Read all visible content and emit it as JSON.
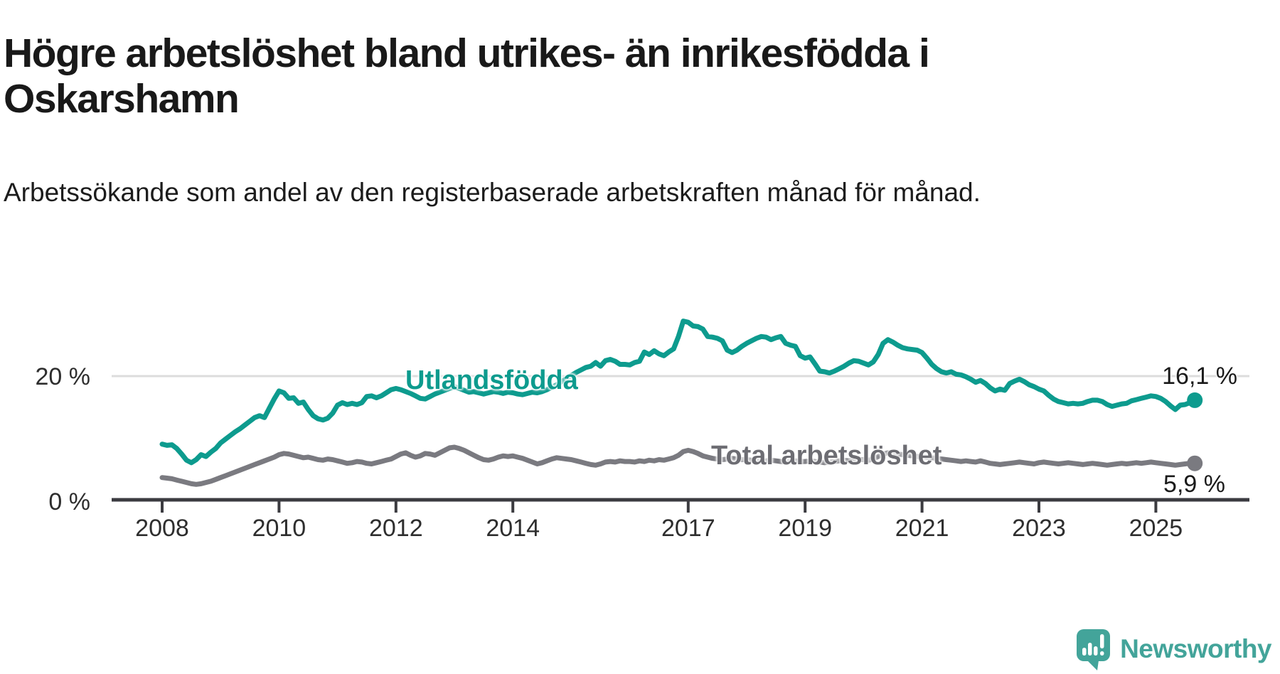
{
  "title": "Högre arbetslöshet bland utrikes- än inrikesfödda i Oskarshamn",
  "subtitle": "Arbetssökande som andel av den registerbaserade arbetskraften månad för månad.",
  "branding": {
    "logo_text": "Newsworthy"
  },
  "colors": {
    "foreign_born": "#0d9b8e",
    "total": "#7a7a80",
    "gridline": "#dcdcdc",
    "axis": "#3b3b40",
    "text": "#191919",
    "logo": "#43a49a"
  },
  "chart_data": {
    "type": "line",
    "title": "Högre arbetslöshet bland utrikes- än inrikesfödda i Oskarshamn",
    "frequency": "monthly",
    "x_start": "2008-01",
    "x_end": "2025-09",
    "ylim": [
      0,
      30
    ],
    "grid": "single horizontal gridline at 20%",
    "legend_position": "inline labels on lines",
    "y_ticks": [
      {
        "value": 20,
        "label": "20 %",
        "gridline": true
      },
      {
        "value": 0,
        "label": "0 %",
        "gridline": false
      }
    ],
    "x_ticks": [
      {
        "year": 2008,
        "label": "2008"
      },
      {
        "year": 2010,
        "label": "2010"
      },
      {
        "year": 2012,
        "label": "2012"
      },
      {
        "year": 2014,
        "label": "2014"
      },
      {
        "year": 2017,
        "label": "2017"
      },
      {
        "year": 2019,
        "label": "2019"
      },
      {
        "year": 2021,
        "label": "2021"
      },
      {
        "year": 2023,
        "label": "2023"
      },
      {
        "year": 2025,
        "label": "2025"
      }
    ],
    "series": [
      {
        "name": "Utlandsfödda",
        "color": "#0d9b8e",
        "end_label": "16,1 %",
        "end_value": 16.1,
        "values": [
          9.0,
          8.8,
          8.9,
          8.3,
          7.4,
          6.4,
          6.0,
          6.5,
          7.3,
          7.0,
          7.7,
          8.3,
          9.2,
          9.8,
          10.4,
          11.0,
          11.5,
          12.1,
          12.7,
          13.3,
          13.6,
          13.3,
          14.8,
          16.3,
          17.6,
          17.3,
          16.4,
          16.5,
          15.6,
          15.8,
          14.6,
          13.6,
          13.1,
          12.9,
          13.2,
          14.0,
          15.3,
          15.7,
          15.4,
          15.6,
          15.4,
          15.7,
          16.7,
          16.8,
          16.5,
          16.8,
          17.3,
          17.8,
          18.0,
          17.8,
          17.5,
          17.2,
          16.8,
          16.4,
          16.3,
          16.7,
          17.1,
          17.4,
          17.7,
          18.0,
          18.3,
          18.0,
          17.7,
          17.4,
          17.5,
          17.3,
          17.1,
          17.3,
          17.5,
          17.4,
          17.2,
          17.4,
          17.3,
          17.1,
          17.0,
          17.2,
          17.4,
          17.3,
          17.5,
          17.8,
          18.2,
          18.6,
          19.1,
          19.6,
          20.1,
          20.6,
          21.0,
          21.4,
          21.6,
          22.2,
          21.6,
          22.5,
          22.7,
          22.4,
          21.9,
          21.9,
          21.8,
          22.2,
          22.4,
          23.9,
          23.5,
          24.1,
          23.6,
          23.3,
          23.9,
          24.4,
          26.4,
          28.9,
          28.7,
          28.1,
          28.0,
          27.6,
          26.4,
          26.3,
          26.1,
          25.7,
          24.2,
          23.8,
          24.2,
          24.8,
          25.3,
          25.7,
          26.1,
          26.4,
          26.3,
          25.9,
          26.2,
          26.4,
          25.3,
          25.0,
          24.8,
          23.3,
          22.9,
          23.1,
          22.0,
          20.8,
          20.7,
          20.5,
          20.8,
          21.2,
          21.6,
          22.1,
          22.5,
          22.4,
          22.1,
          21.8,
          22.3,
          23.5,
          25.3,
          25.9,
          25.5,
          25.0,
          24.6,
          24.4,
          24.3,
          24.2,
          23.8,
          22.9,
          21.9,
          21.2,
          20.7,
          20.5,
          20.7,
          20.3,
          20.2,
          19.9,
          19.5,
          19.0,
          19.3,
          18.8,
          18.1,
          17.6,
          17.9,
          17.7,
          18.8,
          19.2,
          19.5,
          19.1,
          18.6,
          18.3,
          17.9,
          17.6,
          16.9,
          16.3,
          15.9,
          15.7,
          15.5,
          15.6,
          15.5,
          15.6,
          15.9,
          16.1,
          16.1,
          15.9,
          15.4,
          15.1,
          15.3,
          15.5,
          15.6,
          16.0,
          16.2,
          16.4,
          16.6,
          16.8,
          16.7,
          16.4,
          15.9,
          15.2,
          14.6,
          15.3,
          15.4,
          15.7,
          16.1
        ]
      },
      {
        "name": "Total arbetslöshet",
        "color": "#7a7a80",
        "end_label": "5,9 %",
        "end_value": 5.9,
        "values": [
          3.6,
          3.5,
          3.4,
          3.2,
          3.0,
          2.8,
          2.6,
          2.5,
          2.6,
          2.8,
          3.0,
          3.3,
          3.6,
          3.9,
          4.2,
          4.5,
          4.8,
          5.1,
          5.4,
          5.7,
          6.0,
          6.3,
          6.6,
          6.9,
          7.3,
          7.5,
          7.4,
          7.2,
          7.0,
          6.8,
          6.9,
          6.7,
          6.5,
          6.4,
          6.6,
          6.5,
          6.3,
          6.1,
          5.9,
          6.0,
          6.2,
          6.1,
          5.9,
          5.8,
          6.0,
          6.2,
          6.4,
          6.6,
          7.0,
          7.4,
          7.6,
          7.2,
          6.9,
          7.1,
          7.5,
          7.4,
          7.2,
          7.6,
          8.0,
          8.4,
          8.5,
          8.3,
          8.0,
          7.6,
          7.2,
          6.8,
          6.5,
          6.4,
          6.6,
          6.9,
          7.1,
          7.0,
          7.1,
          6.9,
          6.7,
          6.4,
          6.1,
          5.8,
          6.0,
          6.3,
          6.6,
          6.8,
          6.7,
          6.6,
          6.5,
          6.3,
          6.1,
          5.9,
          5.7,
          5.6,
          5.8,
          6.1,
          6.2,
          6.1,
          6.3,
          6.2,
          6.2,
          6.1,
          6.3,
          6.2,
          6.4,
          6.3,
          6.5,
          6.4,
          6.6,
          6.8,
          7.2,
          7.8,
          8.0,
          7.8,
          7.5,
          7.1,
          6.9,
          6.7,
          6.6,
          6.5,
          6.6,
          6.7,
          6.6,
          6.5,
          6.5,
          6.4,
          6.3,
          6.2,
          6.3,
          6.4,
          6.3,
          6.2,
          6.1,
          6.2,
          6.3,
          6.2,
          6.2,
          6.3,
          6.2,
          6.1,
          6.0,
          6.1,
          6.2,
          6.3,
          6.4,
          6.3,
          6.4,
          6.5,
          6.5,
          6.4,
          6.6,
          7.0,
          7.4,
          7.6,
          7.5,
          7.4,
          7.3,
          7.2,
          7.1,
          7.0,
          7.0,
          6.9,
          6.8,
          6.7,
          6.6,
          6.5,
          6.4,
          6.3,
          6.2,
          6.3,
          6.2,
          6.1,
          6.3,
          6.1,
          5.9,
          5.8,
          5.7,
          5.8,
          5.9,
          6.0,
          6.1,
          6.0,
          5.9,
          5.8,
          6.0,
          6.1,
          6.0,
          5.9,
          5.8,
          5.9,
          6.0,
          5.9,
          5.8,
          5.7,
          5.8,
          5.9,
          5.8,
          5.7,
          5.6,
          5.7,
          5.8,
          5.9,
          5.8,
          5.9,
          6.0,
          5.9,
          6.0,
          6.1,
          6.0,
          5.9,
          5.8,
          5.7,
          5.6,
          5.7,
          5.8,
          5.9,
          5.9
        ]
      }
    ]
  }
}
